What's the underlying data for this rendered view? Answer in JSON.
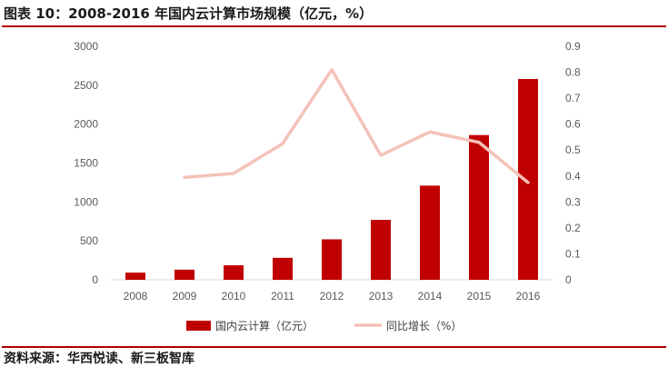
{
  "header": {
    "title": "图表 10：2008-2016 年国内云计算市场规模（亿元，%）"
  },
  "footer": {
    "source": "资料来源：华西悦读、新三板智库"
  },
  "colors": {
    "bar": "#c00000",
    "line": "#f4c2b8",
    "rule": "#b00000"
  },
  "chart_data": {
    "type": "bar",
    "categories": [
      "2008",
      "2009",
      "2010",
      "2011",
      "2012",
      "2013",
      "2014",
      "2015",
      "2016"
    ],
    "series": [
      {
        "name": "国内云计算（亿元）",
        "type": "bar",
        "axis": "left",
        "values": [
          92,
          130,
          187,
          282,
          520,
          770,
          1210,
          1860,
          2580
        ]
      },
      {
        "name": "同比增长（%）",
        "type": "line",
        "axis": "right",
        "values": [
          null,
          0.395,
          0.41,
          0.525,
          0.81,
          0.48,
          0.57,
          0.53,
          0.375
        ]
      }
    ],
    "y_left": {
      "min": 0,
      "max": 3000,
      "ticks": [
        "0",
        "500",
        "1000",
        "1500",
        "2000",
        "2500",
        "3000"
      ]
    },
    "y_right": {
      "min": 0,
      "max": 0.9,
      "ticks": [
        "0",
        "0.1",
        "0.2",
        "0.3",
        "0.4",
        "0.5",
        "0.6",
        "0.7",
        "0.8",
        "0.9"
      ]
    },
    "grid": false,
    "legend_position": "bottom"
  }
}
